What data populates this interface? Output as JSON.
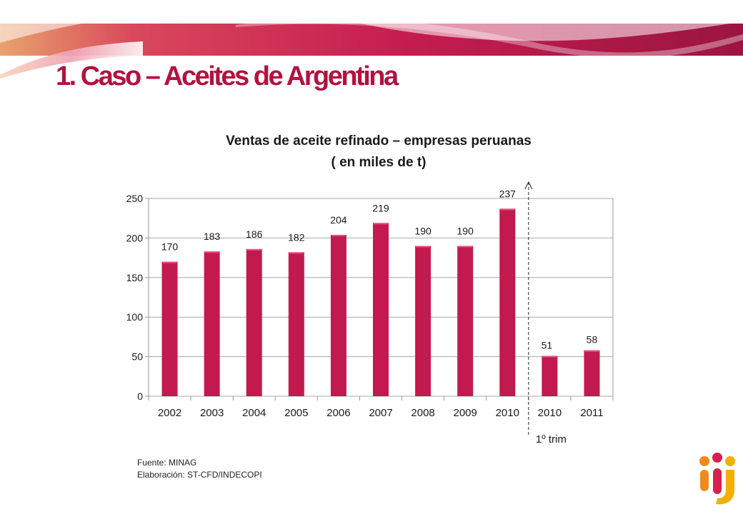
{
  "slide": {
    "title": "1. Caso – Aceites de Argentina",
    "source_line": "Fuente: MINAG",
    "elaboration_line": "Elaboración: ST-CFD/INDECOPI",
    "logo_icon": "indecopi-logo-icon"
  },
  "colors": {
    "bar": "#c21a4e",
    "bar_highlight": "#e8507a",
    "title": "#b3123f",
    "banner_light": "#e9a36c",
    "banner_dark": "#9b1540"
  },
  "chart_data": {
    "type": "bar",
    "title_line1": "Ventas de aceite refinado – empresas peruanas",
    "title_line2": "( en miles de t)",
    "categories": [
      "2002",
      "2003",
      "2004",
      "2005",
      "2006",
      "2007",
      "2008",
      "2009",
      "2010",
      "2010",
      "2011"
    ],
    "values": [
      170,
      183,
      186,
      182,
      204,
      219,
      190,
      190,
      237,
      51,
      58
    ],
    "data_labels": [
      "170",
      "183",
      "186",
      "182",
      "204",
      "219",
      "190",
      "190",
      "237",
      "51",
      "58"
    ],
    "yticks": [
      "0",
      "50",
      "100",
      "150",
      "200",
      "250"
    ],
    "ylim": [
      0,
      250
    ],
    "grid": true,
    "legend": "none",
    "separator_note": "1º trim"
  }
}
